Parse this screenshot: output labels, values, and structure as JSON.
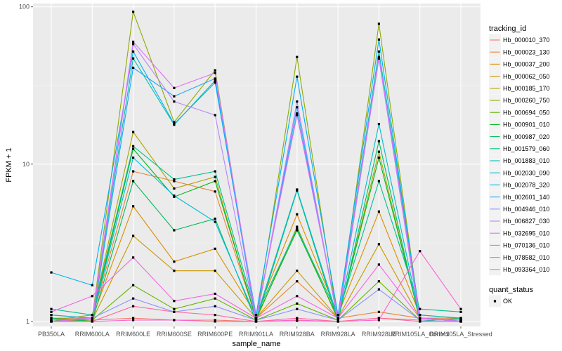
{
  "chart_data": {
    "type": "line",
    "xlabel": "sample_name",
    "ylabel": "FPKM + 1",
    "y_scale": "log10",
    "ylim": [
      0.93,
      105
    ],
    "y_ticks": [
      1,
      10,
      100
    ],
    "y_tick_labels": [
      "1",
      "10",
      "100"
    ],
    "categories": [
      "PB350LA",
      "RRIM600LA",
      "RRIM600LE",
      "RRIM600SE",
      "RRIM600PE",
      "RRIM901LA",
      "RRIM928BA",
      "RRIM928LA",
      "RRIM928LE",
      "RRIM105LA_Control",
      "RRIM105LA_Stressed"
    ],
    "grid": true,
    "legend": {
      "position": "right",
      "title": "tracking_id",
      "status_title": "quant_status",
      "status_items": [
        "OK"
      ]
    },
    "series": [
      {
        "name": "Hb_000010_370",
        "color": "#F8766D",
        "values": [
          1.0,
          1.02,
          1.05,
          1.02,
          1.02,
          1.0,
          1.01,
          1.0,
          1.05,
          1.02,
          1.02
        ]
      },
      {
        "name": "Hb_000023_130",
        "color": "#EC8239",
        "values": [
          1.05,
          1.05,
          9.0,
          7.8,
          6.7,
          1.05,
          1.8,
          1.05,
          1.15,
          1.05,
          1.05
        ]
      },
      {
        "name": "Hb_000037_200",
        "color": "#DB8E00",
        "values": [
          1.1,
          1.05,
          5.4,
          2.4,
          2.9,
          1.1,
          4.8,
          1.1,
          5.0,
          1.1,
          1.05
        ]
      },
      {
        "name": "Hb_000062_050",
        "color": "#C79800",
        "values": [
          1.05,
          1.02,
          3.5,
          2.1,
          2.1,
          1.05,
          2.1,
          1.05,
          3.1,
          1.05,
          1.02
        ]
      },
      {
        "name": "Hb_000185_170",
        "color": "#AEA200",
        "values": [
          1.02,
          1.1,
          16.0,
          7.0,
          8.3,
          1.02,
          4.0,
          1.02,
          12.0,
          1.02,
          1.02
        ]
      },
      {
        "name": "Hb_000260_750",
        "color": "#8FAA00",
        "values": [
          1.0,
          1.05,
          93.0,
          18.5,
          39.5,
          1.0,
          48.0,
          1.0,
          78.0,
          1.05,
          1.0
        ]
      },
      {
        "name": "Hb_000694_050",
        "color": "#64B200",
        "values": [
          1.02,
          1.02,
          1.7,
          1.2,
          1.4,
          1.02,
          1.3,
          1.02,
          1.8,
          1.02,
          1.02
        ]
      },
      {
        "name": "Hb_000901_010",
        "color": "#00B81B",
        "values": [
          1.0,
          1.05,
          12.5,
          6.2,
          7.8,
          1.05,
          3.8,
          1.05,
          11.0,
          1.05,
          1.0
        ]
      },
      {
        "name": "Hb_000987_020",
        "color": "#00BD5C",
        "values": [
          1.05,
          1.0,
          7.8,
          3.8,
          4.5,
          1.0,
          6.8,
          1.0,
          14.0,
          1.0,
          1.05
        ]
      },
      {
        "name": "Hb_001579_060",
        "color": "#00C08E",
        "values": [
          1.2,
          1.1,
          13.0,
          8.0,
          9.0,
          1.1,
          3.9,
          1.1,
          7.8,
          1.2,
          1.15
        ]
      },
      {
        "name": "Hb_001883_010",
        "color": "#00C1B2",
        "values": [
          1.0,
          1.05,
          47.0,
          17.8,
          34.0,
          1.05,
          21.0,
          1.05,
          52.0,
          1.1,
          1.05
        ]
      },
      {
        "name": "Hb_002030_090",
        "color": "#00BCD6",
        "values": [
          1.1,
          1.05,
          11.0,
          6.3,
          4.3,
          1.05,
          6.9,
          1.05,
          18.0,
          1.05,
          1.0
        ]
      },
      {
        "name": "Hb_002078_320",
        "color": "#00B2F3",
        "values": [
          2.05,
          1.7,
          52.0,
          18.0,
          33.0,
          1.1,
          36.0,
          1.1,
          62.0,
          1.05,
          1.02
        ]
      },
      {
        "name": "Hb_002601_140",
        "color": "#1FA5FF",
        "values": [
          1.0,
          1.0,
          41.0,
          27.0,
          35.0,
          1.0,
          23.0,
          1.0,
          47.0,
          1.0,
          1.0
        ]
      },
      {
        "name": "Hb_004946_010",
        "color": "#8B93FF",
        "values": [
          1.02,
          1.05,
          1.4,
          1.15,
          1.25,
          1.02,
          1.2,
          1.02,
          1.6,
          1.02,
          1.02
        ]
      },
      {
        "name": "Hb_006827_030",
        "color": "#B983FF",
        "values": [
          1.0,
          1.0,
          58.0,
          25.0,
          20.5,
          1.0,
          25.0,
          1.0,
          47.0,
          1.0,
          1.0
        ]
      },
      {
        "name": "Hb_032695_010",
        "color": "#DC71FA",
        "values": [
          1.0,
          1.05,
          60.0,
          30.5,
          38.0,
          1.05,
          20.5,
          1.05,
          48.0,
          1.05,
          1.0
        ]
      },
      {
        "name": "Hb_070136_010",
        "color": "#F265E7",
        "values": [
          1.15,
          1.45,
          2.55,
          1.35,
          1.5,
          1.05,
          1.45,
          1.05,
          2.3,
          1.05,
          1.02
        ]
      },
      {
        "name": "Hb_078582_010",
        "color": "#FD61D1",
        "values": [
          1.0,
          1.0,
          1.02,
          1.02,
          1.0,
          1.0,
          1.02,
          1.0,
          1.02,
          2.8,
          1.2
        ]
      },
      {
        "name": "Hb_093364_010",
        "color": "#FF67A4",
        "values": [
          1.0,
          1.0,
          1.25,
          1.15,
          1.1,
          1.0,
          1.05,
          1.0,
          1.05,
          1.0,
          1.0
        ]
      }
    ]
  }
}
